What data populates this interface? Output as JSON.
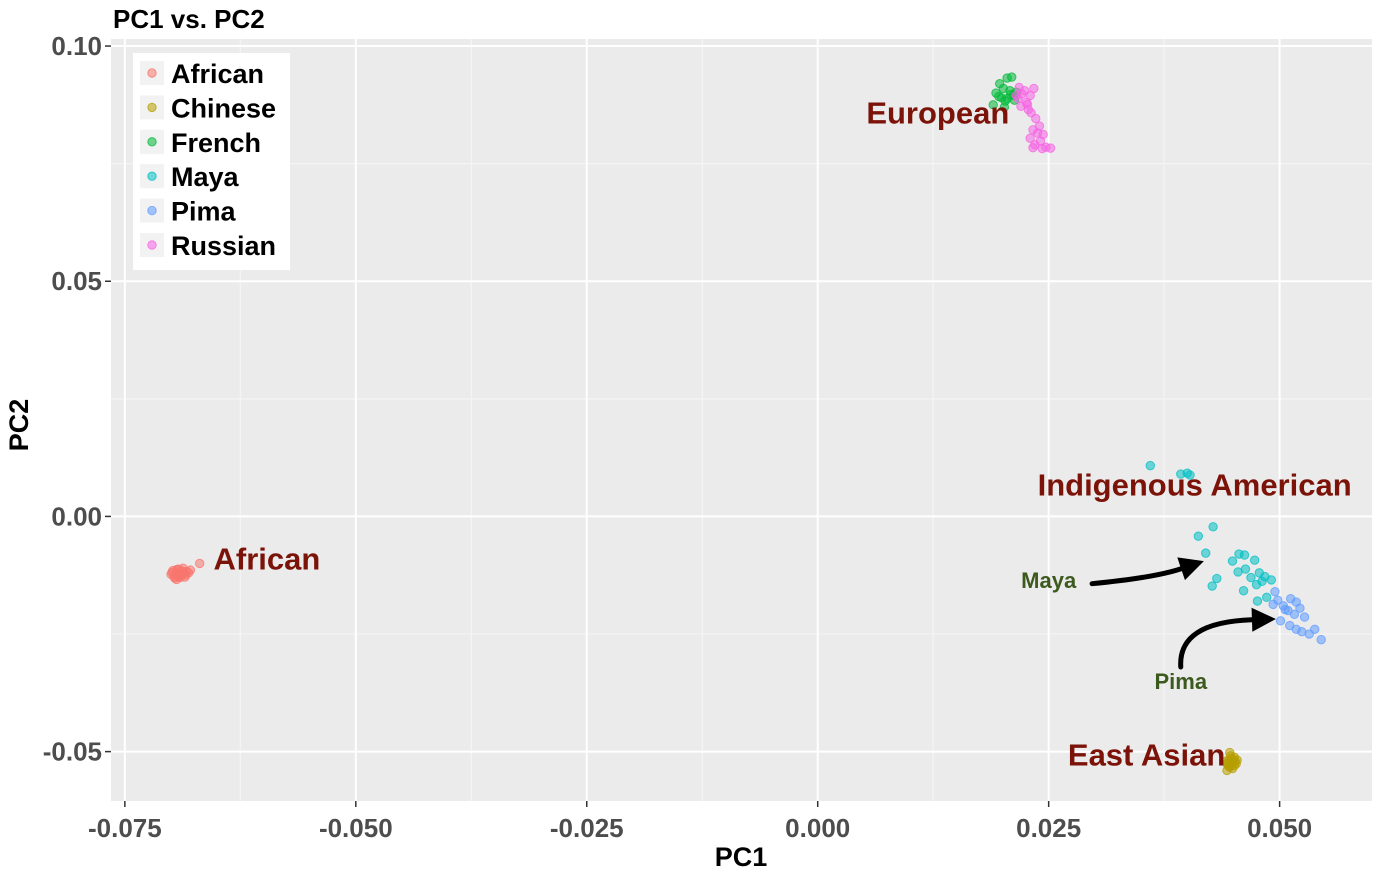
{
  "chart_data": {
    "type": "scatter",
    "title": "PC1 vs. PC2",
    "xlabel": "PC1",
    "ylabel": "PC2",
    "xlim": [
      -0.0765,
      0.06
    ],
    "ylim": [
      -0.0605,
      0.1015
    ],
    "x_ticks": [
      -0.075,
      -0.05,
      -0.025,
      0.0,
      0.025,
      0.05
    ],
    "x_tick_labels": [
      "-0.075",
      "-0.050",
      "-0.025",
      "0.000",
      "0.025",
      "0.050"
    ],
    "y_ticks": [
      -0.05,
      0.0,
      0.05,
      0.1
    ],
    "y_tick_labels": [
      "-0.05",
      "0.00",
      "0.05",
      "0.10"
    ],
    "grid": true,
    "legend_position": "top-left",
    "series": [
      {
        "name": "African",
        "color": "#F8766D",
        "points": [
          [
            -0.0695,
            -0.0122
          ],
          [
            -0.0693,
            -0.0118
          ],
          [
            -0.0691,
            -0.0125
          ],
          [
            -0.0689,
            -0.012
          ],
          [
            -0.0697,
            -0.0127
          ],
          [
            -0.0694,
            -0.0113
          ],
          [
            -0.069,
            -0.013
          ],
          [
            -0.0686,
            -0.0121
          ],
          [
            -0.0699,
            -0.0119
          ],
          [
            -0.0688,
            -0.0116
          ],
          [
            -0.0692,
            -0.0128
          ],
          [
            -0.0684,
            -0.0124
          ],
          [
            -0.0696,
            -0.0131
          ],
          [
            -0.0687,
            -0.011
          ],
          [
            -0.07,
            -0.0123
          ],
          [
            -0.0683,
            -0.0117
          ],
          [
            -0.0692,
            -0.0112
          ],
          [
            -0.0685,
            -0.0129
          ],
          [
            -0.0698,
            -0.0115
          ],
          [
            -0.069,
            -0.0126
          ],
          [
            -0.0681,
            -0.012
          ],
          [
            -0.0694,
            -0.0134
          ],
          [
            -0.0688,
            -0.0123
          ],
          [
            -0.0679,
            -0.0114
          ],
          [
            -0.0669,
            -0.01
          ]
        ]
      },
      {
        "name": "Chinese",
        "color": "#B79F00",
        "points": [
          [
            0.0447,
            -0.0522
          ],
          [
            0.0449,
            -0.0527
          ],
          [
            0.0445,
            -0.0519
          ],
          [
            0.0451,
            -0.053
          ],
          [
            0.0443,
            -0.0525
          ],
          [
            0.0448,
            -0.0514
          ],
          [
            0.0452,
            -0.0521
          ],
          [
            0.0446,
            -0.0533
          ],
          [
            0.045,
            -0.0517
          ],
          [
            0.0444,
            -0.0529
          ],
          [
            0.0453,
            -0.0526
          ],
          [
            0.0447,
            -0.0509
          ],
          [
            0.0442,
            -0.052
          ],
          [
            0.0449,
            -0.0536
          ],
          [
            0.0451,
            -0.0512
          ],
          [
            0.0445,
            -0.0531
          ],
          [
            0.0448,
            -0.0524
          ],
          [
            0.0454,
            -0.0518
          ],
          [
            0.0446,
            -0.0502
          ],
          [
            0.0443,
            -0.054
          ]
        ]
      },
      {
        "name": "French",
        "color": "#00BA38",
        "points": [
          [
            0.0205,
            0.0932
          ],
          [
            0.021,
            0.0934
          ],
          [
            0.0197,
            0.092
          ],
          [
            0.0201,
            0.091
          ],
          [
            0.0208,
            0.0905
          ],
          [
            0.0193,
            0.09
          ],
          [
            0.0212,
            0.0895
          ],
          [
            0.0199,
            0.089
          ],
          [
            0.0205,
            0.0888
          ],
          [
            0.019,
            0.0875
          ],
          [
            0.0215,
            0.0902
          ],
          [
            0.0203,
            0.0883
          ],
          [
            0.0196,
            0.0893
          ],
          [
            0.0209,
            0.0897
          ],
          [
            0.0202,
            0.087
          ],
          [
            0.0213,
            0.0885
          ]
        ]
      },
      {
        "name": "Maya",
        "color": "#00BFC4",
        "points": [
          [
            0.036,
            0.0108
          ],
          [
            0.0393,
            0.009
          ],
          [
            0.04,
            0.0092
          ],
          [
            0.0403,
            0.0088
          ],
          [
            0.0428,
            -0.0022
          ],
          [
            0.0412,
            -0.0042
          ],
          [
            0.042,
            -0.0078
          ],
          [
            0.0456,
            -0.008
          ],
          [
            0.0462,
            -0.0082
          ],
          [
            0.0449,
            -0.0095
          ],
          [
            0.0473,
            -0.0093
          ],
          [
            0.0463,
            -0.0112
          ],
          [
            0.0455,
            -0.0118
          ],
          [
            0.0478,
            -0.012
          ],
          [
            0.0484,
            -0.0128
          ],
          [
            0.0491,
            -0.0135
          ],
          [
            0.0469,
            -0.013
          ],
          [
            0.0481,
            -0.0138
          ],
          [
            0.0432,
            -0.0132
          ],
          [
            0.0427,
            -0.0148
          ],
          [
            0.0475,
            -0.0145
          ],
          [
            0.0461,
            -0.0158
          ],
          [
            0.0476,
            -0.018
          ],
          [
            0.0486,
            -0.0172
          ]
        ]
      },
      {
        "name": "Pima",
        "color": "#619CFF",
        "points": [
          [
            0.0495,
            -0.016
          ],
          [
            0.0512,
            -0.0175
          ],
          [
            0.0518,
            -0.0182
          ],
          [
            0.0498,
            -0.0178
          ],
          [
            0.0504,
            -0.019
          ],
          [
            0.0522,
            -0.0195
          ],
          [
            0.0509,
            -0.02
          ],
          [
            0.0516,
            -0.0208
          ],
          [
            0.0527,
            -0.0214
          ],
          [
            0.0501,
            -0.0222
          ],
          [
            0.0511,
            -0.0232
          ],
          [
            0.0518,
            -0.024
          ],
          [
            0.0524,
            -0.0245
          ],
          [
            0.0532,
            -0.025
          ],
          [
            0.0545,
            -0.0262
          ],
          [
            0.0538,
            -0.024
          ],
          [
            0.0506,
            -0.0198
          ],
          [
            0.0493,
            -0.0187
          ]
        ]
      },
      {
        "name": "Russian",
        "color": "#F564E3",
        "points": [
          [
            0.0218,
            0.0912
          ],
          [
            0.0224,
            0.0905
          ],
          [
            0.023,
            0.0895
          ],
          [
            0.0221,
            0.0898
          ],
          [
            0.0217,
            0.0888
          ],
          [
            0.0226,
            0.088
          ],
          [
            0.022,
            0.0872
          ],
          [
            0.0228,
            0.0865
          ],
          [
            0.0231,
            0.0858
          ],
          [
            0.0236,
            0.0846
          ],
          [
            0.024,
            0.083
          ],
          [
            0.0233,
            0.0822
          ],
          [
            0.0238,
            0.0815
          ],
          [
            0.0244,
            0.0812
          ],
          [
            0.023,
            0.0804
          ],
          [
            0.0241,
            0.0798
          ],
          [
            0.0235,
            0.079
          ],
          [
            0.0247,
            0.0785
          ],
          [
            0.0252,
            0.0783
          ],
          [
            0.0243,
            0.0782
          ],
          [
            0.0233,
            0.0784
          ],
          [
            0.0227,
            0.0876
          ],
          [
            0.0215,
            0.0895
          ],
          [
            0.0234,
            0.091
          ]
        ]
      }
    ],
    "annotations": [
      {
        "text": "European",
        "x": 0.013,
        "y": 0.0835,
        "color": "#7B1309",
        "size": "large",
        "anchor": "middle"
      },
      {
        "text": "Indigenous American",
        "x": 0.0408,
        "y": 0.0044,
        "color": "#7B1309",
        "size": "large",
        "anchor": "middle"
      },
      {
        "text": "African",
        "x": -0.0654,
        "y": -0.0113,
        "color": "#7B1309",
        "size": "large",
        "anchor": "start"
      },
      {
        "text": "East Asian",
        "x": 0.0356,
        "y": -0.053,
        "color": "#7B1309",
        "size": "large",
        "anchor": "middle"
      },
      {
        "text": "Maya",
        "x": 0.025,
        "y": -0.0152,
        "color": "#3D5A1E",
        "size": "small",
        "anchor": "middle"
      },
      {
        "text": "Pima",
        "x": 0.0393,
        "y": -0.0367,
        "color": "#3D5A1E",
        "size": "small",
        "anchor": "middle"
      }
    ],
    "arrows": [
      {
        "from": [
          0.0297,
          -0.0143
        ],
        "control": [
          0.0365,
          -0.013
        ],
        "to": [
          0.0418,
          -0.0095
        ]
      },
      {
        "from": [
          0.0393,
          -0.032
        ],
        "control": [
          0.039,
          -0.0225
        ],
        "to": [
          0.0496,
          -0.0218
        ]
      }
    ]
  }
}
